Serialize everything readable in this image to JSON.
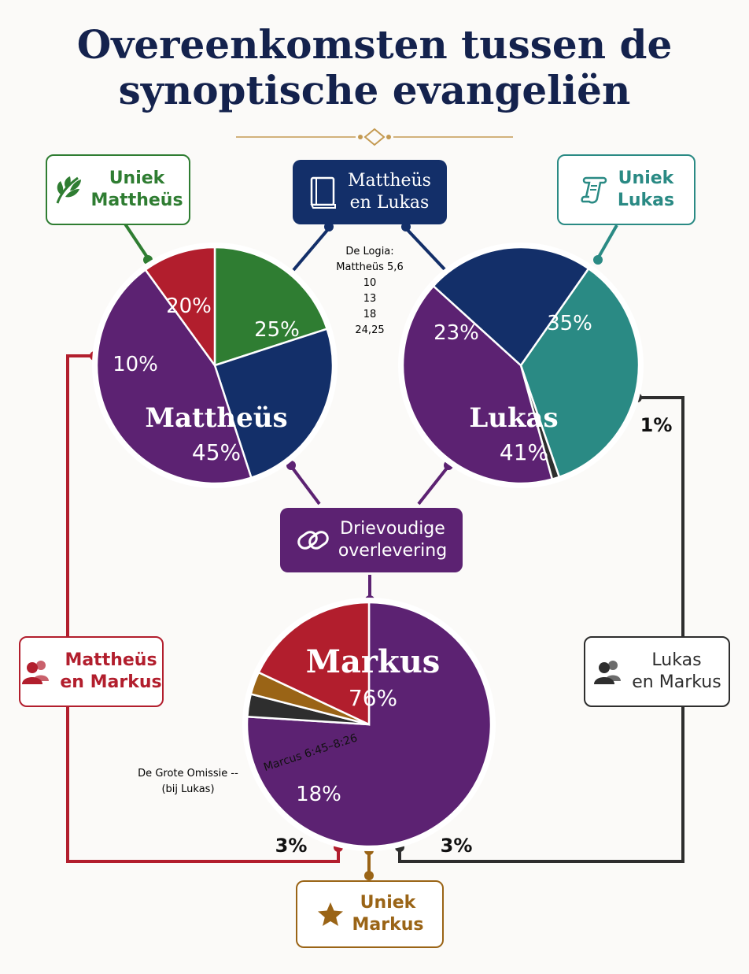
{
  "title": {
    "line1": "Overeenkomsten tussen de",
    "line2": "synoptische evangeliën"
  },
  "labels": {
    "uniek_mattheus": [
      "Uniek",
      "Mattheüs"
    ],
    "mattheus_lukas": [
      "Mattheüs",
      "en Lukas"
    ],
    "uniek_lukas": [
      "Uniek",
      "Lukas"
    ],
    "drievoudig": [
      "Drievoudige",
      "overlevering"
    ],
    "mattheus_markus": [
      "Mattheüs",
      "en Markus"
    ],
    "lukas_markus": [
      "Lukas",
      "en Markus"
    ],
    "uniek_markus": [
      "Uniek",
      "Markus"
    ]
  },
  "annotations": {
    "logia": [
      "De Logia:",
      "Mattheüs 5,6",
      "10",
      "13",
      "18",
      "24,25"
    ],
    "grote_omissie": [
      "De Grote Omissie --",
      "(bij Lukas)"
    ],
    "marcus_range": "Marcus 6:45–8:26"
  },
  "icons": {
    "uniek_mattheus": "leaf-icon",
    "mattheus_lukas": "book-icon",
    "uniek_lukas": "scroll-icon",
    "drievoudig": "linked-rings-icon",
    "mattheus_markus": "people-icon",
    "lukas_markus": "people-icon",
    "uniek_markus": "star-icon"
  },
  "colors": {
    "title": "#14224d",
    "green": "#2f7d32",
    "navy": "#132f69",
    "teal": "#2a8a84",
    "purple": "#5c2272",
    "red": "#b21e2d",
    "dark": "#2e2e2e",
    "gold": "#9a6416"
  },
  "chart_data": [
    {
      "type": "pie",
      "title": "Mattheüs",
      "slices": [
        {
          "label": "Uniek Mattheüs",
          "value": 20,
          "display": "20%",
          "color": "#2f7d32"
        },
        {
          "label": "Mattheüs en Lukas",
          "value": 25,
          "display": "25%",
          "color": "#132f69"
        },
        {
          "label": "Drievoudige overlevering",
          "value": 45,
          "display": "45%",
          "color": "#5c2272"
        },
        {
          "label": "Mattheüs en Markus",
          "value": 10,
          "display": "10%",
          "color": "#b21e2d"
        }
      ]
    },
    {
      "type": "pie",
      "title": "Lukas",
      "slices": [
        {
          "label": "Uniek Lukas",
          "value": 35,
          "display": "35%",
          "color": "#2a8a84"
        },
        {
          "label": "Lukas en Markus",
          "value": 1,
          "display": "1%",
          "color": "#2e2e2e"
        },
        {
          "label": "Drievoudige overlevering",
          "value": 41,
          "display": "41%",
          "color": "#5c2272"
        },
        {
          "label": "Mattheüs en Lukas",
          "value": 23,
          "display": "23%",
          "color": "#132f69"
        }
      ]
    },
    {
      "type": "pie",
      "title": "Markus",
      "slices": [
        {
          "label": "Drievoudige overlevering",
          "value": 76,
          "display": "76%",
          "color": "#5c2272"
        },
        {
          "label": "Lukas en Markus",
          "value": 3,
          "display": "3%",
          "color": "#2e2e2e"
        },
        {
          "label": "Uniek Markus",
          "value": 3,
          "display": "",
          "color": "#9a6416"
        },
        {
          "label": "Mattheüs en Markus",
          "value": 18,
          "display": "18%",
          "color": "#b21e2d"
        }
      ],
      "extra_labels": [
        "3%",
        "3%"
      ]
    }
  ]
}
